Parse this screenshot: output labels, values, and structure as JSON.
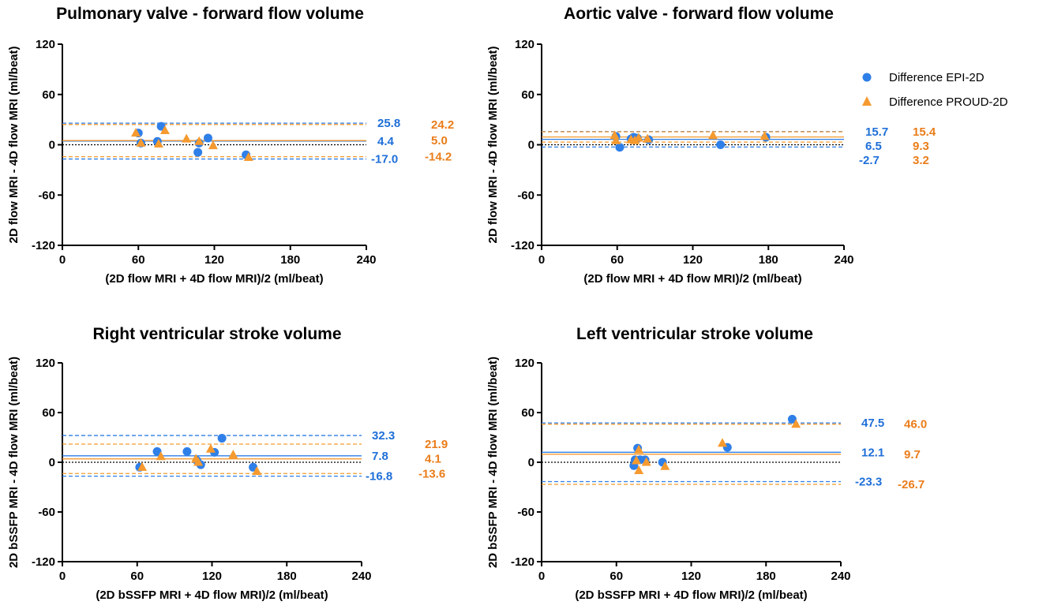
{
  "colors": {
    "epi": "#2f7fe8",
    "proud": "#f59a2f",
    "epi_stat": "#1f6fd8",
    "proud_stat": "#ea7d1a",
    "zero_line": "#000000",
    "axis": "#000000"
  },
  "legend": {
    "placement": "top-right",
    "items": [
      {
        "label": "Difference EPI-2D",
        "marker": "circle",
        "color": "#2f7fe8"
      },
      {
        "label": "Difference PROUD-2D",
        "marker": "triangle",
        "color": "#f59a2f"
      }
    ]
  },
  "chart_data": [
    {
      "type": "scatter",
      "title": "Pulmonary valve - forward flow volume",
      "xlabel": "(2D flow MRI + 4D flow MRI)/2 (ml/beat)",
      "ylabel": "2D flow MRI - 4D flow MRI (ml/beat)",
      "xlim": [
        0,
        240
      ],
      "ylim": [
        -120,
        120
      ],
      "xticks": [
        "0",
        "60",
        "120",
        "180",
        "240"
      ],
      "yticks": [
        "120",
        "60",
        "0",
        "-60",
        "-120"
      ],
      "series": [
        {
          "name": "Difference EPI-2D",
          "marker": "circle",
          "points": [
            [
              60,
              14
            ],
            [
              62,
              2
            ],
            [
              75,
              4
            ],
            [
              78,
              22
            ],
            [
              107,
              -9
            ],
            [
              108,
              2
            ],
            [
              115,
              8
            ],
            [
              145,
              -12
            ]
          ],
          "stats": {
            "upper": 25.8,
            "mean": 4.4,
            "lower": -17.0
          },
          "stat_labels": [
            "25.8",
            "4.4",
            "-17.0"
          ]
        },
        {
          "name": "Difference PROUD-2D",
          "marker": "triangle",
          "points": [
            [
              58,
              14
            ],
            [
              62,
              2
            ],
            [
              76,
              1
            ],
            [
              81,
              17
            ],
            [
              98,
              7
            ],
            [
              108,
              4
            ],
            [
              119,
              -1
            ],
            [
              147,
              -15
            ]
          ],
          "stats": {
            "upper": 24.2,
            "mean": 5.0,
            "lower": -14.2
          },
          "stat_labels": [
            "24.2",
            "5.0",
            "-14.2"
          ]
        }
      ]
    },
    {
      "type": "scatter",
      "title": "Aortic valve - forward flow volume",
      "xlabel": "(2D flow MRI + 4D flow MRI)/2 (ml/beat)",
      "ylabel": "2D flow MRI - 4D flow MRI (ml/beat)",
      "xlim": [
        0,
        240
      ],
      "ylim": [
        -120,
        120
      ],
      "xticks": [
        "0",
        "60",
        "120",
        "180",
        "240"
      ],
      "yticks": [
        "120",
        "60",
        "0",
        "-60",
        "-120"
      ],
      "series": [
        {
          "name": "Difference EPI-2D",
          "marker": "circle",
          "points": [
            [
              59,
              10
            ],
            [
              62,
              -3
            ],
            [
              71,
              7
            ],
            [
              73,
              9
            ],
            [
              76,
              8
            ],
            [
              85,
              6
            ],
            [
              142,
              0
            ],
            [
              178,
              9
            ]
          ],
          "stats": {
            "upper": 15.7,
            "mean": 6.5,
            "lower": -2.7
          },
          "stat_labels": [
            "15.7",
            "6.5",
            "-2.7"
          ]
        },
        {
          "name": "Difference PROUD-2D",
          "marker": "triangle",
          "points": [
            [
              58,
              11
            ],
            [
              59,
              5
            ],
            [
              71,
              6
            ],
            [
              74,
              5
            ],
            [
              77,
              8
            ],
            [
              84,
              7
            ],
            [
              136,
              11
            ],
            [
              177,
              10
            ]
          ],
          "stats": {
            "upper": 15.4,
            "mean": 9.3,
            "lower": 3.2
          },
          "stat_labels": [
            "15.4",
            "9.3",
            "3.2"
          ]
        }
      ]
    },
    {
      "type": "scatter",
      "title": "Right ventricular stroke volume",
      "xlabel": "(2D bSSFP MRI + 4D flow MRI)/2 (ml/beat)",
      "ylabel": "2D bSSFP MRI - 4D flow MRI (ml/beat)",
      "xlim": [
        0,
        240
      ],
      "ylim": [
        -120,
        120
      ],
      "xticks": [
        "0",
        "60",
        "120",
        "180",
        "240"
      ],
      "yticks": [
        "120",
        "60",
        "0",
        "-60",
        "-120"
      ],
      "series": [
        {
          "name": "Difference EPI-2D",
          "marker": "circle",
          "points": [
            [
              62,
              -6
            ],
            [
              76,
              13
            ],
            [
              100,
              13
            ],
            [
              108,
              2
            ],
            [
              111,
              -3
            ],
            [
              122,
              12
            ],
            [
              128,
              29
            ],
            [
              153,
              -6
            ]
          ],
          "stats": {
            "upper": 32.3,
            "mean": 7.8,
            "lower": -16.8
          },
          "stat_labels": [
            "32.3",
            "7.8",
            "-16.8"
          ]
        },
        {
          "name": "Difference PROUD-2D",
          "marker": "triangle",
          "points": [
            [
              64,
              -6
            ],
            [
              79,
              7
            ],
            [
              107,
              4
            ],
            [
              109,
              0
            ],
            [
              119,
              16
            ],
            [
              137,
              9
            ],
            [
              156,
              -11
            ]
          ],
          "stats": {
            "upper": 21.9,
            "mean": 4.1,
            "lower": -13.6
          },
          "stat_labels": [
            "21.9",
            "4.1",
            "-13.6"
          ]
        }
      ]
    },
    {
      "type": "scatter",
      "title": "Left ventricular stroke volume",
      "xlabel": "(2D bSSFP MRI + 4D flow MRI)/2 (ml/beat)",
      "ylabel": "2D bSSFP MRI - 4D flow MRI (ml/beat)",
      "xlim": [
        0,
        240
      ],
      "ylim": [
        -120,
        120
      ],
      "xticks": [
        "0",
        "60",
        "120",
        "180",
        "240"
      ],
      "yticks": [
        "120",
        "60",
        "0",
        "-60",
        "-120"
      ],
      "series": [
        {
          "name": "Difference EPI-2D",
          "marker": "circle",
          "points": [
            [
              74,
              -4
            ],
            [
              75,
              3
            ],
            [
              77,
              17
            ],
            [
              79,
              3
            ],
            [
              83,
              3
            ],
            [
              97,
              0
            ],
            [
              149,
              18
            ],
            [
              201,
              52
            ]
          ],
          "stats": {
            "upper": 47.5,
            "mean": 12.1,
            "lower": -23.3
          },
          "stat_labels": [
            "47.5",
            "12.1",
            "-23.3"
          ]
        },
        {
          "name": "Difference PROUD-2D",
          "marker": "triangle",
          "points": [
            [
              76,
              2
            ],
            [
              78,
              15
            ],
            [
              78,
              -10
            ],
            [
              84,
              0
            ],
            [
              99,
              -5
            ],
            [
              145,
              23
            ],
            [
              204,
              46
            ]
          ],
          "stats": {
            "upper": 46.0,
            "mean": 9.7,
            "lower": -26.7
          },
          "stat_labels": [
            "46.0",
            "9.7",
            "-26.7"
          ]
        }
      ]
    }
  ]
}
